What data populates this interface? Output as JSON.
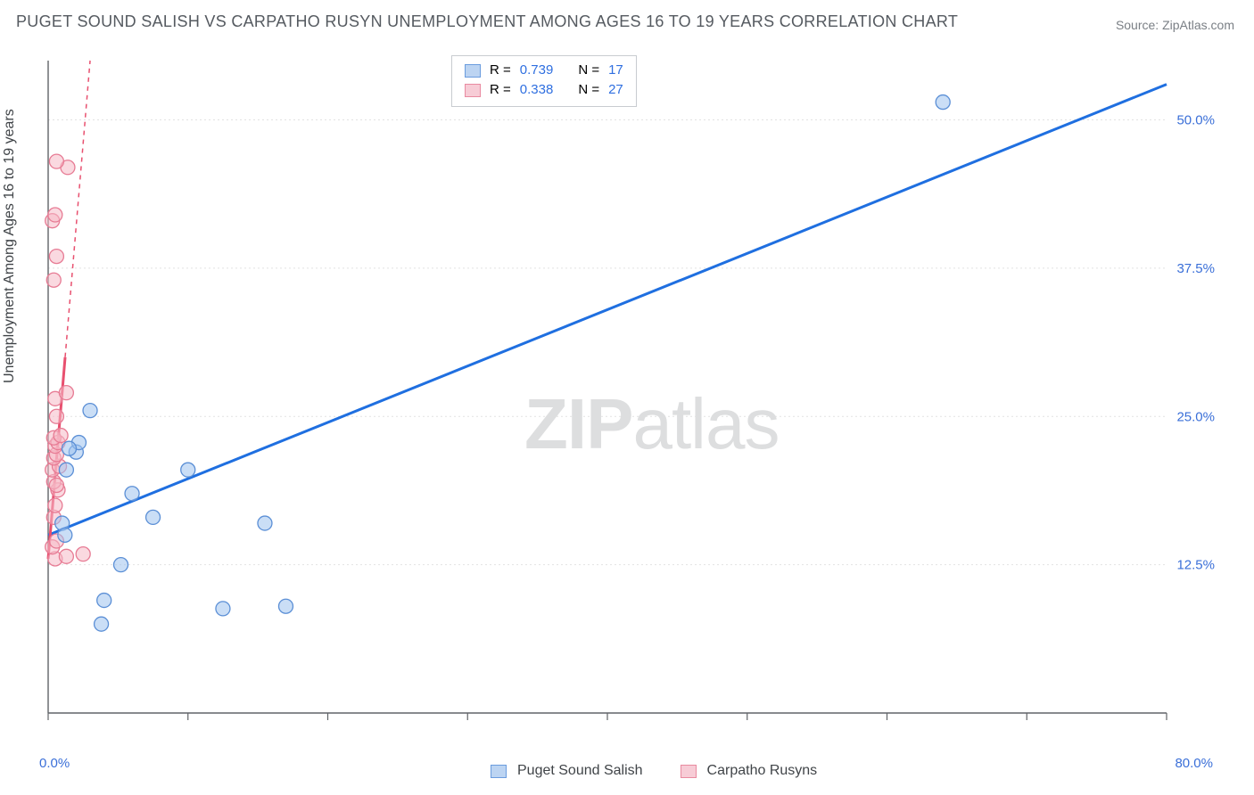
{
  "title": "PUGET SOUND SALISH VS CARPATHO RUSYN UNEMPLOYMENT AMONG AGES 16 TO 19 YEARS CORRELATION CHART",
  "source": "Source: ZipAtlas.com",
  "ylabel": "Unemployment Among Ages 16 to 19 years",
  "chart": {
    "type": "scatter",
    "background_color": "#ffffff",
    "grid_color": "#e2e2e2",
    "axis_color": "#606468",
    "tick_label_color": "#3a6fd8",
    "xlim": [
      0,
      80
    ],
    "ylim": [
      0,
      55
    ],
    "x_ticks": [
      0,
      20,
      40,
      60,
      80
    ],
    "x_tick_labels": [
      "0.0%",
      "",
      "",
      "",
      "80.0%"
    ],
    "y_ticks": [
      12.5,
      25.0,
      37.5,
      50.0
    ],
    "y_tick_labels": [
      "12.5%",
      "25.0%",
      "37.5%",
      "50.0%"
    ],
    "x_minor_ticks": [
      10,
      30,
      50,
      70
    ],
    "marker_radius": 8,
    "marker_opacity": 0.55,
    "series": [
      {
        "name": "Puget Sound Salish",
        "color_fill": "#9fc2ee",
        "color_stroke": "#5b8fd6",
        "line_color": "#1f6fe0",
        "line_width": 3,
        "r": 0.739,
        "n": 17,
        "trend": {
          "x1": 0,
          "y1": 15.0,
          "x2": 80,
          "y2": 53.0
        },
        "points": [
          {
            "x": 4.0,
            "y": 9.5
          },
          {
            "x": 3.8,
            "y": 7.5
          },
          {
            "x": 5.2,
            "y": 12.5
          },
          {
            "x": 12.5,
            "y": 8.8
          },
          {
            "x": 17.0,
            "y": 9.0
          },
          {
            "x": 2.0,
            "y": 22.0
          },
          {
            "x": 2.2,
            "y": 22.8
          },
          {
            "x": 1.5,
            "y": 22.3
          },
          {
            "x": 3.0,
            "y": 25.5
          },
          {
            "x": 6.0,
            "y": 18.5
          },
          {
            "x": 7.5,
            "y": 16.5
          },
          {
            "x": 10.0,
            "y": 20.5
          },
          {
            "x": 15.5,
            "y": 16.0
          },
          {
            "x": 1.0,
            "y": 16.0
          },
          {
            "x": 1.2,
            "y": 15.0
          },
          {
            "x": 1.3,
            "y": 20.5
          },
          {
            "x": 64.0,
            "y": 51.5
          }
        ]
      },
      {
        "name": "Carpatho Rusyns",
        "color_fill": "#f5b9c6",
        "color_stroke": "#e77b94",
        "line_color": "#e8506f",
        "line_width": 3,
        "line_dash_after_y": 30,
        "r": 0.338,
        "n": 27,
        "trend": {
          "x1": 0,
          "y1": 13.0,
          "x2": 3.0,
          "y2": 55.0
        },
        "points": [
          {
            "x": 0.5,
            "y": 13.0
          },
          {
            "x": 1.3,
            "y": 13.2
          },
          {
            "x": 2.5,
            "y": 13.4
          },
          {
            "x": 0.3,
            "y": 14.0
          },
          {
            "x": 0.6,
            "y": 14.5
          },
          {
            "x": 0.4,
            "y": 16.5
          },
          {
            "x": 0.5,
            "y": 17.5
          },
          {
            "x": 0.7,
            "y": 18.8
          },
          {
            "x": 0.4,
            "y": 19.5
          },
          {
            "x": 0.6,
            "y": 19.2
          },
          {
            "x": 0.3,
            "y": 20.5
          },
          {
            "x": 0.8,
            "y": 20.8
          },
          {
            "x": 0.4,
            "y": 21.5
          },
          {
            "x": 0.6,
            "y": 21.8
          },
          {
            "x": 0.5,
            "y": 22.5
          },
          {
            "x": 0.7,
            "y": 22.8
          },
          {
            "x": 0.4,
            "y": 23.2
          },
          {
            "x": 0.9,
            "y": 23.4
          },
          {
            "x": 0.6,
            "y": 25.0
          },
          {
            "x": 0.5,
            "y": 26.5
          },
          {
            "x": 1.3,
            "y": 27.0
          },
          {
            "x": 0.4,
            "y": 36.5
          },
          {
            "x": 0.6,
            "y": 38.5
          },
          {
            "x": 0.3,
            "y": 41.5
          },
          {
            "x": 0.5,
            "y": 42.0
          },
          {
            "x": 1.4,
            "y": 46.0
          },
          {
            "x": 0.6,
            "y": 46.5
          }
        ]
      }
    ]
  },
  "legend_top": {
    "rows": [
      {
        "swatch_fill": "#bcd4f2",
        "swatch_stroke": "#6a9cde",
        "r_label": "R =",
        "r_val": "0.739",
        "n_label": "N =",
        "n_val": "17"
      },
      {
        "swatch_fill": "#f7ccd6",
        "swatch_stroke": "#e98aa0",
        "r_label": "R =",
        "r_val": "0.338",
        "n_label": "N =",
        "n_val": "27"
      }
    ]
  },
  "legend_bottom": {
    "items": [
      {
        "swatch_fill": "#bcd4f2",
        "swatch_stroke": "#6a9cde",
        "label": "Puget Sound Salish"
      },
      {
        "swatch_fill": "#f7ccd6",
        "swatch_stroke": "#e98aa0",
        "label": "Carpatho Rusyns"
      }
    ]
  },
  "watermark": {
    "zip": "ZIP",
    "atlas": "atlas",
    "color": "#dddedf"
  },
  "stat_value_color": "#2f6fe0",
  "stat_label_color": "#404448"
}
